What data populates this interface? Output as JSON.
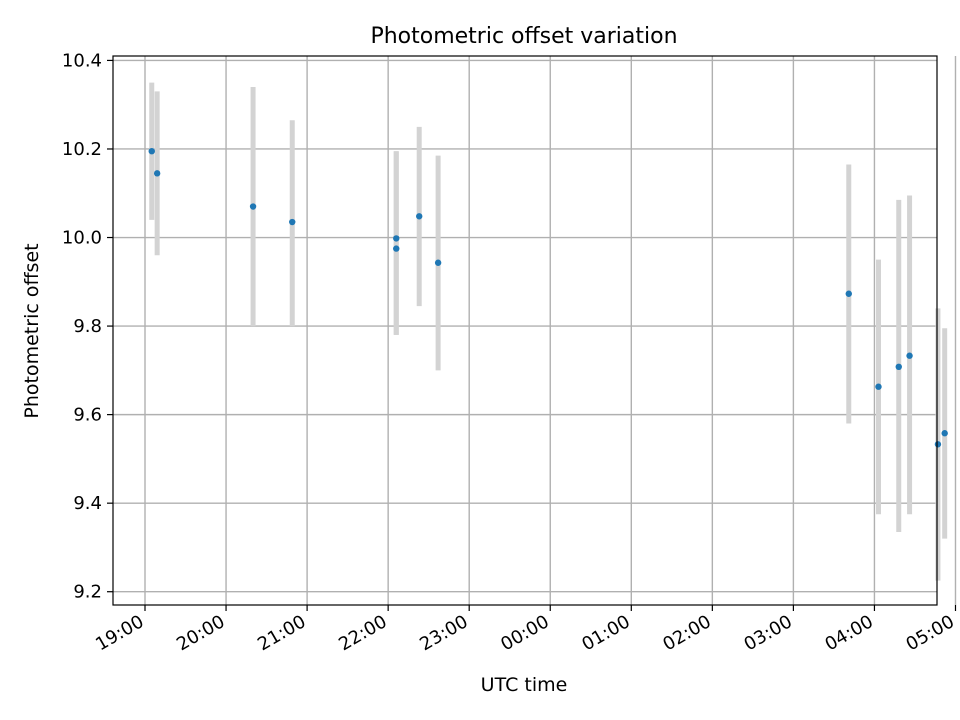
{
  "chart_data": {
    "type": "scatter",
    "title": "Photometric offset variation",
    "xlabel": "UTC time",
    "ylabel": "Photometric offset",
    "x_axis": {
      "kind": "time",
      "min": "19:00",
      "max": "05:10",
      "ticks": [
        "19:00",
        "20:00",
        "21:00",
        "22:00",
        "23:00",
        "00:00",
        "01:00",
        "02:00",
        "03:00",
        "04:00",
        "05:00"
      ]
    },
    "ylim": [
      9.17,
      10.41
    ],
    "y_ticks": [
      "9.2",
      "9.4",
      "9.6",
      "9.8",
      "10.0",
      "10.2",
      "10.4"
    ],
    "grid": true,
    "colors": {
      "points": "#1f77b4",
      "errorbars": "#d3d3d3",
      "grid": "#b0b0b0"
    },
    "series": [
      {
        "points": [
          {
            "x": "19:05",
            "y": 10.195,
            "yerr_low": 10.04,
            "yerr_high": 10.35
          },
          {
            "x": "19:09",
            "y": 10.145,
            "yerr_low": 9.96,
            "yerr_high": 10.33
          },
          {
            "x": "20:20",
            "y": 10.07,
            "yerr_low": 9.8,
            "yerr_high": 10.34
          },
          {
            "x": "20:49",
            "y": 10.035,
            "yerr_low": 9.8,
            "yerr_high": 10.265
          },
          {
            "x": "22:06",
            "y": 9.998,
            "yerr_low": 9.78,
            "yerr_high": 10.195
          },
          {
            "x": "22:06",
            "y": 9.975,
            "yerr_low": 9.78,
            "yerr_high": 10.195
          },
          {
            "x": "22:23",
            "y": 10.048,
            "yerr_low": 9.845,
            "yerr_high": 10.25
          },
          {
            "x": "22:37",
            "y": 9.943,
            "yerr_low": 9.7,
            "yerr_high": 10.185
          },
          {
            "x": "03:41",
            "y": 9.873,
            "yerr_low": 9.58,
            "yerr_high": 10.165
          },
          {
            "x": "04:03",
            "y": 9.663,
            "yerr_low": 9.375,
            "yerr_high": 9.95
          },
          {
            "x": "04:18",
            "y": 9.708,
            "yerr_low": 9.335,
            "yerr_high": 10.085
          },
          {
            "x": "04:26",
            "y": 9.733,
            "yerr_low": 9.375,
            "yerr_high": 10.095
          },
          {
            "x": "04:47",
            "y": 9.533,
            "yerr_low": 9.225,
            "yerr_high": 9.84
          },
          {
            "x": "04:52",
            "y": 9.558,
            "yerr_low": 9.32,
            "yerr_high": 9.795
          }
        ]
      }
    ]
  }
}
